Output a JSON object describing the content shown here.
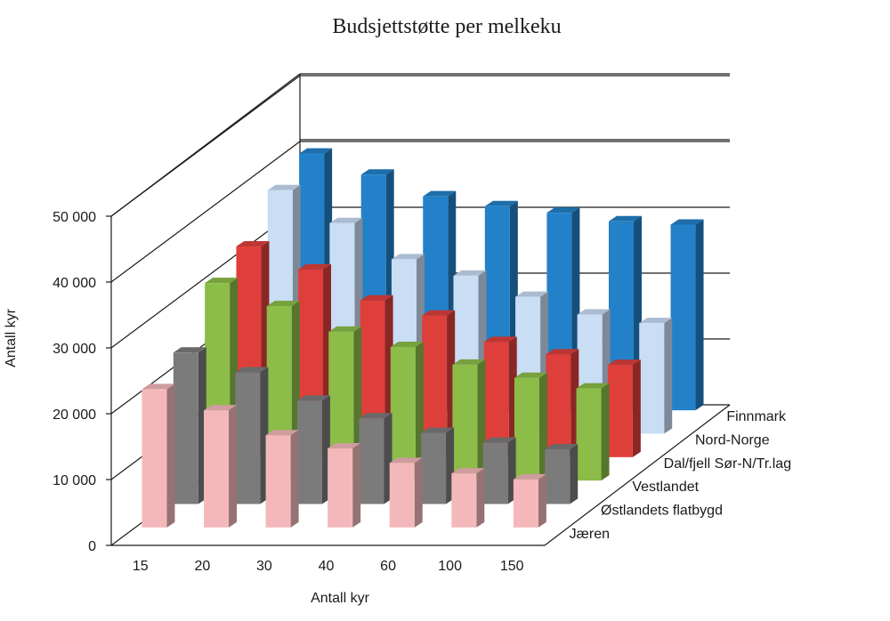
{
  "chart_data": {
    "type": "bar",
    "title": "Budsjettstøtte per melkeku",
    "xlabel": "Antall kyr",
    "ylabel": "Antall kyr",
    "categories": [
      "15",
      "20",
      "30",
      "40",
      "60",
      "100",
      "150"
    ],
    "ylim": [
      0,
      50000
    ],
    "yticks": [
      "0",
      "10 000",
      "20 000",
      "30 000",
      "40 000",
      "50 000"
    ],
    "grid": true,
    "projection": "3d-column",
    "series": [
      {
        "name": "Jæren",
        "color": "#f4b8bb",
        "values": [
          21000,
          17800,
          14000,
          12000,
          9800,
          8200,
          7300
        ]
      },
      {
        "name": "Østlandets flatbygd",
        "color": "#7b7b7b",
        "values": [
          23000,
          20000,
          15700,
          13000,
          10800,
          9300,
          8300
        ]
      },
      {
        "name": "Vestlandet",
        "color": "#8bbd48",
        "values": [
          30000,
          26500,
          22600,
          20300,
          17600,
          15600,
          14000
        ]
      },
      {
        "name": "Dal/fjell Sør-N/Tr.lag",
        "color": "#df3f3b",
        "values": [
          32000,
          28500,
          23800,
          21500,
          17500,
          15600,
          14000
        ]
      },
      {
        "name": "Nord-Norge",
        "color": "#c9ddf5",
        "values": [
          37000,
          32000,
          26500,
          24000,
          20800,
          18100,
          16800
        ]
      },
      {
        "name": "Finnmark",
        "color": "#2281c9",
        "values": [
          39000,
          35800,
          32500,
          31000,
          30000,
          28700,
          28200
        ]
      }
    ]
  }
}
